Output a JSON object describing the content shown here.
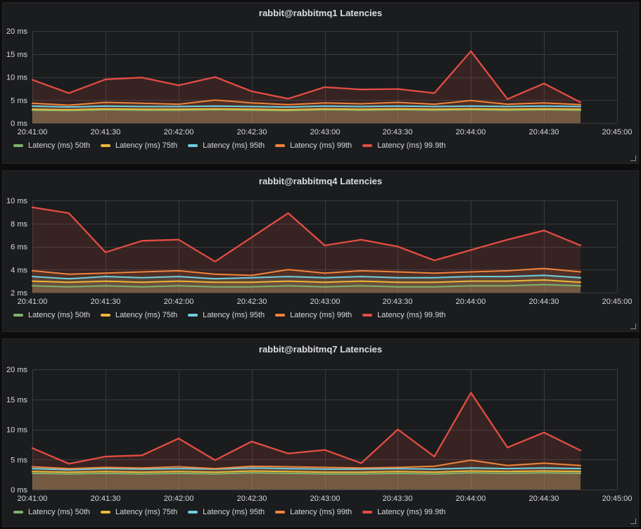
{
  "page": {
    "background": "#0d0d0e",
    "panel_background": "#1b1c1e",
    "grid_color": "#3a3b40",
    "text_color": "#d8d9da",
    "title_color": "#dcdde0"
  },
  "chart_data": [
    {
      "type": "area",
      "title": "rabbit@rabbitmq1 Latencies",
      "xlabel": "",
      "ylabel": "",
      "time_range": [
        "20:41:00",
        "20:45:00"
      ],
      "point_interval_seconds": 15,
      "grid": true,
      "legend_position": "bottom",
      "ylim": [
        0,
        20
      ],
      "y_tick_values": [
        0,
        5,
        10,
        15,
        20
      ],
      "y_tick_labels": [
        "0 ms",
        "5 ms",
        "10 ms",
        "15 ms",
        "20 ms"
      ],
      "x_tick_labels": [
        "20:41:00",
        "20:41:30",
        "20:42:00",
        "20:42:30",
        "20:43:00",
        "20:43:30",
        "20:44:00",
        "20:44:30",
        "20:45:00"
      ],
      "x_times": [
        "20:41:00",
        "20:41:15",
        "20:41:30",
        "20:41:45",
        "20:42:00",
        "20:42:15",
        "20:42:30",
        "20:42:45",
        "20:43:00",
        "20:43:15",
        "20:43:30",
        "20:43:45",
        "20:44:00",
        "20:44:15",
        "20:44:30",
        "20:44:45"
      ],
      "series": [
        {
          "name": "Latency (ms) 50th",
          "color": "#7EB26D",
          "values": [
            2.8,
            2.7,
            2.9,
            2.8,
            2.8,
            2.9,
            2.8,
            2.7,
            2.9,
            2.8,
            2.9,
            2.8,
            2.9,
            2.8,
            2.9,
            2.8
          ]
        },
        {
          "name": "Latency (ms) 75th",
          "color": "#EAB839",
          "values": [
            3.0,
            2.9,
            3.1,
            3.0,
            3.0,
            3.1,
            3.0,
            2.9,
            3.1,
            3.0,
            3.1,
            3.0,
            3.1,
            3.0,
            3.1,
            3.0
          ]
        },
        {
          "name": "Latency (ms) 95th",
          "color": "#6ED0E0",
          "values": [
            3.7,
            3.5,
            3.7,
            3.6,
            3.6,
            3.7,
            3.6,
            3.5,
            3.7,
            3.6,
            3.7,
            3.6,
            3.7,
            3.6,
            3.7,
            3.6
          ]
        },
        {
          "name": "Latency (ms) 99th",
          "color": "#EF843C",
          "values": [
            4.3,
            3.9,
            4.5,
            4.3,
            4.1,
            5.0,
            4.4,
            4.0,
            4.4,
            4.2,
            4.5,
            4.1,
            4.9,
            4.1,
            4.4,
            4.0
          ]
        },
        {
          "name": "Latency (ms) 99.9th",
          "color": "#E24D42",
          "values": [
            9.4,
            6.5,
            9.5,
            9.9,
            8.2,
            10.0,
            6.9,
            5.3,
            7.8,
            7.3,
            7.4,
            6.5,
            15.6,
            5.2,
            8.6,
            4.5
          ]
        }
      ]
    },
    {
      "type": "area",
      "title": "rabbit@rabbitmq4 Latencies",
      "xlabel": "",
      "ylabel": "",
      "time_range": [
        "20:41:00",
        "20:45:00"
      ],
      "point_interval_seconds": 15,
      "grid": true,
      "legend_position": "bottom",
      "ylim": [
        2,
        10
      ],
      "y_tick_values": [
        2,
        4,
        6,
        8,
        10
      ],
      "y_tick_labels": [
        "2 ms",
        "4 ms",
        "6 ms",
        "8 ms",
        "10 ms"
      ],
      "x_tick_labels": [
        "20:41:00",
        "20:41:30",
        "20:42:00",
        "20:42:30",
        "20:43:00",
        "20:43:30",
        "20:44:00",
        "20:44:30",
        "20:45:00"
      ],
      "x_times": [
        "20:41:00",
        "20:41:15",
        "20:41:30",
        "20:41:45",
        "20:42:00",
        "20:42:15",
        "20:42:30",
        "20:42:45",
        "20:43:00",
        "20:43:15",
        "20:43:30",
        "20:43:45",
        "20:44:00",
        "20:44:15",
        "20:44:30",
        "20:44:45"
      ],
      "series": [
        {
          "name": "Latency (ms) 50th",
          "color": "#7EB26D",
          "values": [
            2.6,
            2.5,
            2.6,
            2.5,
            2.6,
            2.5,
            2.5,
            2.6,
            2.5,
            2.6,
            2.5,
            2.5,
            2.6,
            2.6,
            2.7,
            2.6
          ]
        },
        {
          "name": "Latency (ms) 75th",
          "color": "#EAB839",
          "values": [
            3.0,
            2.9,
            3.0,
            2.9,
            3.0,
            2.9,
            2.9,
            3.0,
            2.9,
            3.0,
            2.9,
            2.9,
            3.0,
            3.0,
            3.1,
            2.9
          ]
        },
        {
          "name": "Latency (ms) 95th",
          "color": "#6ED0E0",
          "values": [
            3.4,
            3.2,
            3.4,
            3.3,
            3.4,
            3.2,
            3.3,
            3.4,
            3.3,
            3.4,
            3.3,
            3.3,
            3.4,
            3.4,
            3.5,
            3.3
          ]
        },
        {
          "name": "Latency (ms) 99th",
          "color": "#EF843C",
          "values": [
            3.9,
            3.6,
            3.7,
            3.8,
            3.9,
            3.6,
            3.5,
            4.0,
            3.7,
            3.9,
            3.8,
            3.7,
            3.8,
            3.9,
            4.1,
            3.8
          ]
        },
        {
          "name": "Latency (ms) 99.9th",
          "color": "#E24D42",
          "values": [
            9.4,
            8.9,
            5.5,
            6.5,
            6.6,
            4.7,
            6.8,
            8.9,
            6.1,
            6.6,
            6.0,
            4.8,
            5.7,
            6.6,
            7.4,
            6.1
          ]
        }
      ]
    },
    {
      "type": "area",
      "title": "rabbit@rabbitmq7 Latencies",
      "xlabel": "",
      "ylabel": "",
      "time_range": [
        "20:41:00",
        "20:45:00"
      ],
      "point_interval_seconds": 15,
      "grid": true,
      "legend_position": "bottom",
      "ylim": [
        0,
        20
      ],
      "y_tick_values": [
        0,
        5,
        10,
        15,
        20
      ],
      "y_tick_labels": [
        "0 ms",
        "5 ms",
        "10 ms",
        "15 ms",
        "20 ms"
      ],
      "x_tick_labels": [
        "20:41:00",
        "20:41:30",
        "20:42:00",
        "20:42:30",
        "20:43:00",
        "20:43:30",
        "20:44:00",
        "20:44:30",
        "20:45:00"
      ],
      "x_times": [
        "20:41:00",
        "20:41:15",
        "20:41:30",
        "20:41:45",
        "20:42:00",
        "20:42:15",
        "20:42:30",
        "20:42:45",
        "20:43:00",
        "20:43:15",
        "20:43:30",
        "20:43:45",
        "20:44:00",
        "20:44:15",
        "20:44:30",
        "20:44:45"
      ],
      "series": [
        {
          "name": "Latency (ms) 50th",
          "color": "#7EB26D",
          "values": [
            2.7,
            2.6,
            2.7,
            2.6,
            2.7,
            2.6,
            2.8,
            2.7,
            2.6,
            2.6,
            2.7,
            2.6,
            2.8,
            2.7,
            2.8,
            2.7
          ]
        },
        {
          "name": "Latency (ms) 75th",
          "color": "#EAB839",
          "values": [
            3.0,
            2.9,
            3.0,
            2.9,
            3.0,
            2.9,
            3.1,
            3.0,
            2.9,
            2.9,
            3.0,
            2.9,
            3.1,
            3.0,
            3.1,
            3.0
          ]
        },
        {
          "name": "Latency (ms) 95th",
          "color": "#6ED0E0",
          "values": [
            3.5,
            3.3,
            3.5,
            3.4,
            3.5,
            3.4,
            3.6,
            3.5,
            3.4,
            3.4,
            3.5,
            3.4,
            3.6,
            3.5,
            3.6,
            3.5
          ]
        },
        {
          "name": "Latency (ms) 99th",
          "color": "#EF843C",
          "values": [
            3.8,
            3.5,
            3.7,
            3.6,
            3.8,
            3.5,
            3.9,
            3.8,
            3.7,
            3.6,
            3.7,
            3.9,
            4.9,
            4.0,
            4.4,
            4.0
          ]
        },
        {
          "name": "Latency (ms) 99.9th",
          "color": "#E24D42",
          "values": [
            6.9,
            4.3,
            5.5,
            5.7,
            8.5,
            4.9,
            8.0,
            6.0,
            6.6,
            4.4,
            10.0,
            5.5,
            16.1,
            7.0,
            9.5,
            6.5
          ]
        }
      ]
    }
  ]
}
